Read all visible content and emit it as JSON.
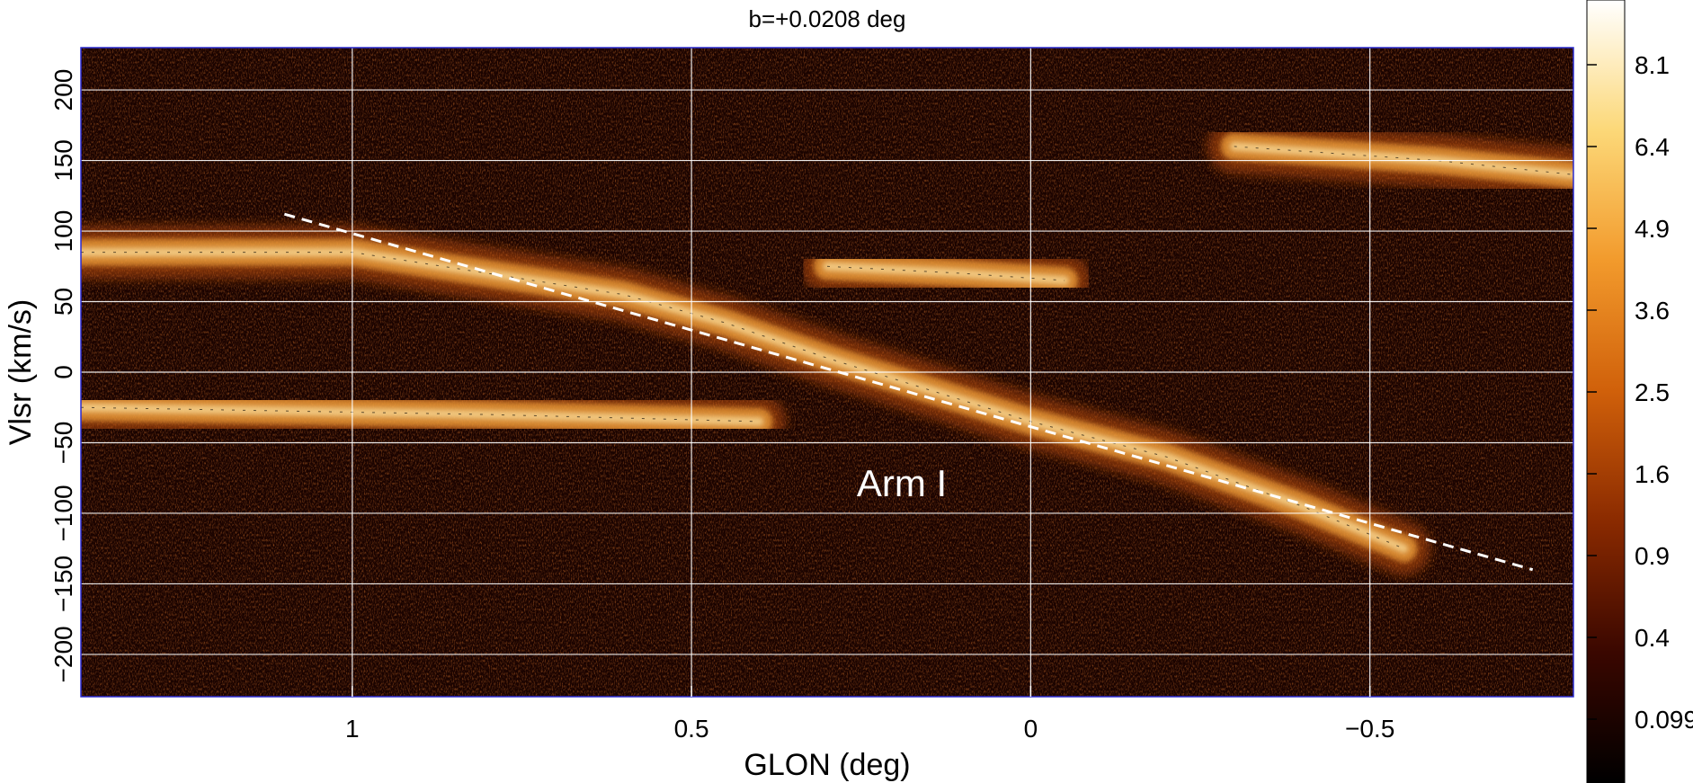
{
  "chart_data": {
    "type": "heatmap",
    "title": "b=+0.0208 deg",
    "xlabel": "GLON (deg)",
    "ylabel": "Vlsr (km/s)",
    "xlim": [
      1.4,
      -0.8
    ],
    "ylim": [
      -230,
      230
    ],
    "x_scale": "linear",
    "x_reversed": true,
    "x_ticks": [
      1,
      0.5,
      0,
      -0.5
    ],
    "x_tick_labels": [
      "1",
      "0.5",
      "0",
      "−0.5"
    ],
    "y_ticks": [
      200,
      150,
      100,
      50,
      0,
      -50,
      -100,
      -150,
      -200
    ],
    "y_tick_labels": [
      "200",
      "150",
      "100",
      "50",
      "0",
      "−50",
      "−100",
      "−150",
      "−200"
    ],
    "grid": true,
    "colorbar": {
      "scale": "nonlinear",
      "tick_values": [
        8.1,
        6.4,
        4.9,
        3.6,
        2.5,
        1.6,
        0.9,
        0.4,
        0.099
      ],
      "tick_labels": [
        "8.1",
        "6.4",
        "4.9",
        "3.6",
        "2.5",
        "1.6",
        "0.9",
        "0.4",
        "0.099"
      ],
      "colormap_stops": [
        "#000000",
        "#3a0700",
        "#8a2a00",
        "#d0600a",
        "#f29a2c",
        "#fcd878",
        "#ffffff"
      ]
    },
    "features": [
      {
        "type": "band",
        "label": "",
        "points": [
          [
            1.4,
            85
          ],
          [
            1.2,
            85
          ],
          [
            1.0,
            85
          ],
          [
            0.8,
            70
          ],
          [
            0.6,
            55
          ],
          [
            0.45,
            35
          ],
          [
            0.3,
            10
          ],
          [
            0.1,
            -20
          ],
          [
            0.0,
            -35
          ],
          [
            -0.2,
            -60
          ],
          [
            -0.4,
            -95
          ],
          [
            -0.55,
            -125
          ]
        ]
      },
      {
        "type": "band",
        "label": "",
        "points": [
          [
            0.3,
            75
          ],
          [
            0.1,
            70
          ],
          [
            -0.05,
            65
          ]
        ]
      },
      {
        "type": "band",
        "label": "",
        "points": [
          [
            1.4,
            -25
          ],
          [
            0.8,
            -30
          ],
          [
            0.4,
            -35
          ]
        ]
      },
      {
        "type": "band",
        "label": "",
        "points": [
          [
            -0.3,
            160
          ],
          [
            -0.6,
            150
          ],
          [
            -0.8,
            140
          ]
        ]
      }
    ],
    "annotations": [
      {
        "type": "dashed_line",
        "color": "#ffffff",
        "from": [
          1.1,
          112
        ],
        "to": [
          -0.74,
          -140
        ]
      },
      {
        "type": "text",
        "text": "Arm I",
        "color": "#ffffff",
        "x": 0.19,
        "y": -88
      }
    ]
  }
}
